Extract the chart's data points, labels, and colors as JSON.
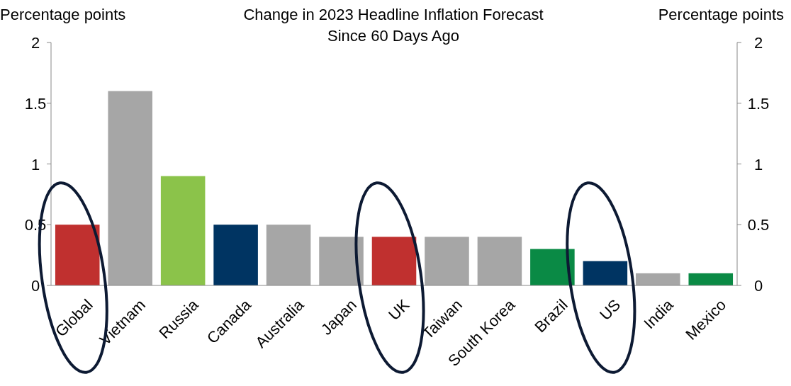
{
  "chart_data": {
    "type": "bar",
    "title": "Change in 2023 Headline Inflation Forecast",
    "subtitle": "Since 60 Days Ago",
    "ylabel": "Percentage points",
    "y2label": "Percentage points",
    "categories": [
      "Global",
      "Vietnam",
      "Russia",
      "Canada",
      "Australia",
      "Japan",
      "UK",
      "Taiwan",
      "South Korea",
      "Brazil",
      "US",
      "India",
      "Mexico"
    ],
    "values": [
      0.5,
      1.6,
      0.9,
      0.5,
      0.5,
      0.4,
      0.4,
      0.4,
      0.4,
      0.3,
      0.2,
      0.1,
      0.1
    ],
    "colors": [
      "#c0302f",
      "#a6a6a6",
      "#8bc34a",
      "#003462",
      "#a6a6a6",
      "#a6a6a6",
      "#c0302f",
      "#a6a6a6",
      "#a6a6a6",
      "#0a8a45",
      "#003462",
      "#a6a6a6",
      "#0a8a45"
    ],
    "ylim": [
      0,
      2
    ],
    "yticks": [
      0,
      0.5,
      1,
      1.5,
      2
    ],
    "y2lim": [
      0,
      2
    ],
    "y2ticks": [
      0,
      0.5,
      1,
      1.5,
      2
    ]
  }
}
